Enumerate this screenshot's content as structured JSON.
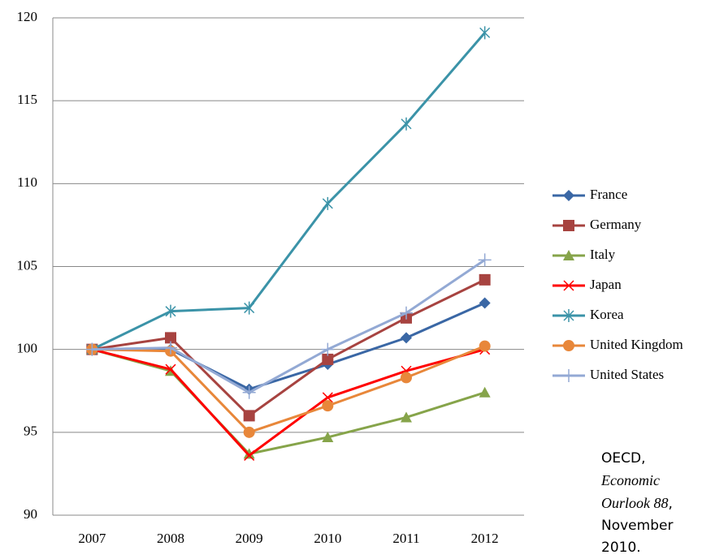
{
  "chart_data": {
    "type": "line",
    "categories": [
      "2007",
      "2008",
      "2009",
      "2010",
      "2011",
      "2012"
    ],
    "series": [
      {
        "name": "France",
        "color": "#3a67a5",
        "marker": "diamond",
        "values": [
          100,
          100.0,
          97.6,
          99.1,
          100.7,
          102.8
        ]
      },
      {
        "name": "Germany",
        "color": "#a74340",
        "marker": "square",
        "values": [
          100,
          100.7,
          96.0,
          99.4,
          101.9,
          104.2
        ]
      },
      {
        "name": "Italy",
        "color": "#86a44a",
        "marker": "triangle",
        "values": [
          100,
          98.7,
          93.7,
          94.7,
          95.9,
          97.4
        ]
      },
      {
        "name": "Japan",
        "color": "#ff0000",
        "marker": "x",
        "values": [
          100,
          98.8,
          93.6,
          97.1,
          98.7,
          100.0
        ]
      },
      {
        "name": "Korea",
        "color": "#3b93a8",
        "marker": "asterisk",
        "values": [
          100,
          102.3,
          102.5,
          108.8,
          113.6,
          119.1
        ]
      },
      {
        "name": "United Kingdom",
        "color": "#e8873a",
        "marker": "circle",
        "values": [
          100,
          99.9,
          95.0,
          96.6,
          98.3,
          100.2
        ]
      },
      {
        "name": "United States",
        "color": "#93a9d4",
        "marker": "plus",
        "values": [
          100,
          100.1,
          97.4,
          100.0,
          102.2,
          105.4
        ]
      }
    ],
    "ylim": [
      90,
      120
    ],
    "yticks": [
      90,
      95,
      100,
      105,
      110,
      115,
      120
    ],
    "grid": true,
    "legend": "right",
    "annotation": [
      "OECD,",
      "Economic Ourlook 88",
      ", November 2010."
    ]
  }
}
